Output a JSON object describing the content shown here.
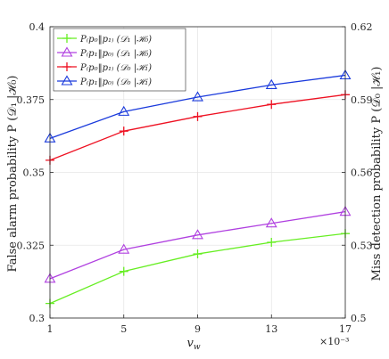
{
  "chart_data": {
    "type": "line",
    "x": [
      1,
      5,
      9,
      13,
      17
    ],
    "x_multiplier_label": "×10⁻³",
    "xlabel": "v",
    "xlabel_sub": "w",
    "ylabel_left": "False alarm probability P (𝒟₁ |ℋ₀)",
    "ylabel_right": "Miss detection probability P (𝒟₀ |ℋ₁)",
    "xlim": [
      1,
      17
    ],
    "ylim_left": [
      0.3,
      0.4
    ],
    "ylim_right": [
      0.5,
      0.62
    ],
    "xticks": [
      "1",
      "5",
      "9",
      "13",
      "17"
    ],
    "yticks_left": [
      "0.3",
      "0.325",
      "0.35",
      "0.375",
      "0.4"
    ],
    "yticks_right": [
      "0.5",
      "0.53",
      "0.56",
      "0.59",
      "0.62"
    ],
    "grid": true,
    "legend_position": "top-left",
    "series": [
      {
        "name": "P₍p₀‖p₁₎ (𝒟₁ |ℋ₀)",
        "axis": "left",
        "color": "#66ee22",
        "marker": "plus",
        "values": [
          0.305,
          0.316,
          0.322,
          0.326,
          0.329
        ]
      },
      {
        "name": "P₍p₁‖p₀₎ (𝒟₁ |ℋ₀)",
        "axis": "left",
        "color": "#b040e0",
        "marker": "triangle",
        "values": [
          0.3135,
          0.3235,
          0.3285,
          0.3325,
          0.3365
        ]
      },
      {
        "name": "P₍p₀‖p₁₎ (𝒟₀ |ℋ₁)",
        "axis": "right",
        "color": "#ee1122",
        "marker": "plus",
        "values": [
          0.565,
          0.577,
          0.583,
          0.588,
          0.592
        ]
      },
      {
        "name": "P₍p₁‖p₀₎ (𝒟₀ |ℋ₁)",
        "axis": "right",
        "color": "#1a3adc",
        "marker": "triangle",
        "values": [
          0.574,
          0.585,
          0.591,
          0.596,
          0.6
        ]
      }
    ]
  }
}
